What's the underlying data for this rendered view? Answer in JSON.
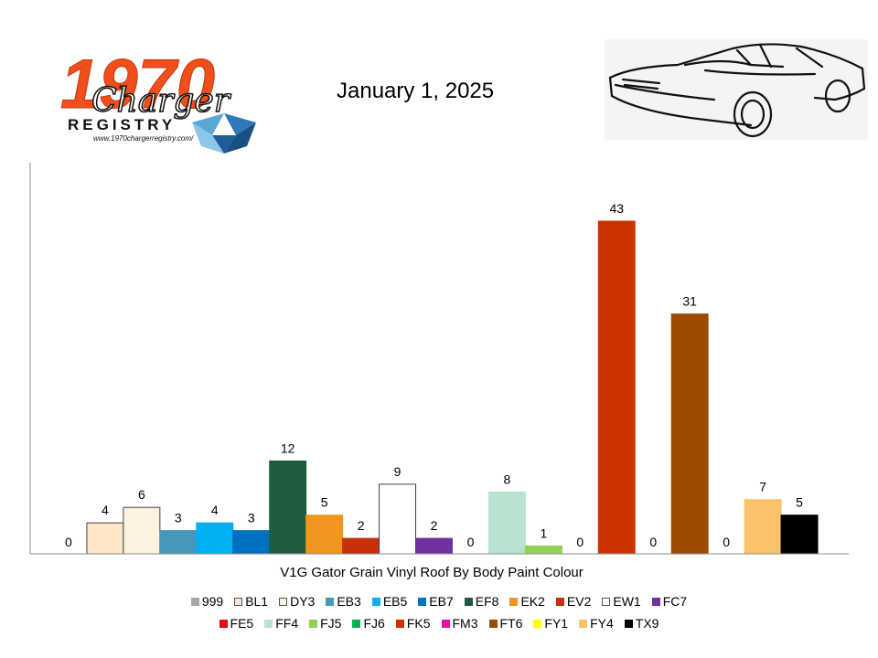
{
  "header": {
    "logo_year": "1970",
    "logo_script": "Charger",
    "logo_registry": "REGISTRY",
    "logo_url": "www.1970chargerregistry.com/",
    "date": "January 1, 2025"
  },
  "chart_data": {
    "type": "bar",
    "xlabel": "V1G Gator Grain Vinyl Roof By Body Paint Colour",
    "ylabel": "",
    "ylim": [
      0,
      48
    ],
    "grid": false,
    "legend_position": "bottom",
    "categories": [
      "999",
      "BL1",
      "DY3",
      "EB3",
      "EB5",
      "EB7",
      "EF8",
      "EK2",
      "EV2",
      "EW1",
      "FC7",
      "FE5",
      "FF4",
      "FJ5",
      "FJ6",
      "FK5",
      "FM3",
      "FT6",
      "FY1",
      "FY4",
      "TX9"
    ],
    "values": [
      0,
      4,
      6,
      3,
      4,
      3,
      12,
      5,
      2,
      9,
      2,
      0,
      8,
      1,
      0,
      43,
      0,
      31,
      0,
      7,
      5
    ],
    "colors": [
      "#a6a6a6",
      "#fde5c8",
      "#fdf2e0",
      "#4797b8",
      "#00b0f0",
      "#0070c0",
      "#1f5b3f",
      "#f0951e",
      "#c8300c",
      "#ffffff",
      "#7030a0",
      "#e30613",
      "#b7e3cf",
      "#92d050",
      "#00b050",
      "#cc3300",
      "#e0149a",
      "#9c4a00",
      "#ffff00",
      "#fbc26a",
      "#000000"
    ],
    "plotted_slots": [
      0,
      1,
      2,
      3,
      4,
      5,
      6,
      7,
      8,
      9,
      10,
      11,
      12,
      13,
      14,
      15,
      16,
      17,
      18,
      19,
      20
    ]
  }
}
